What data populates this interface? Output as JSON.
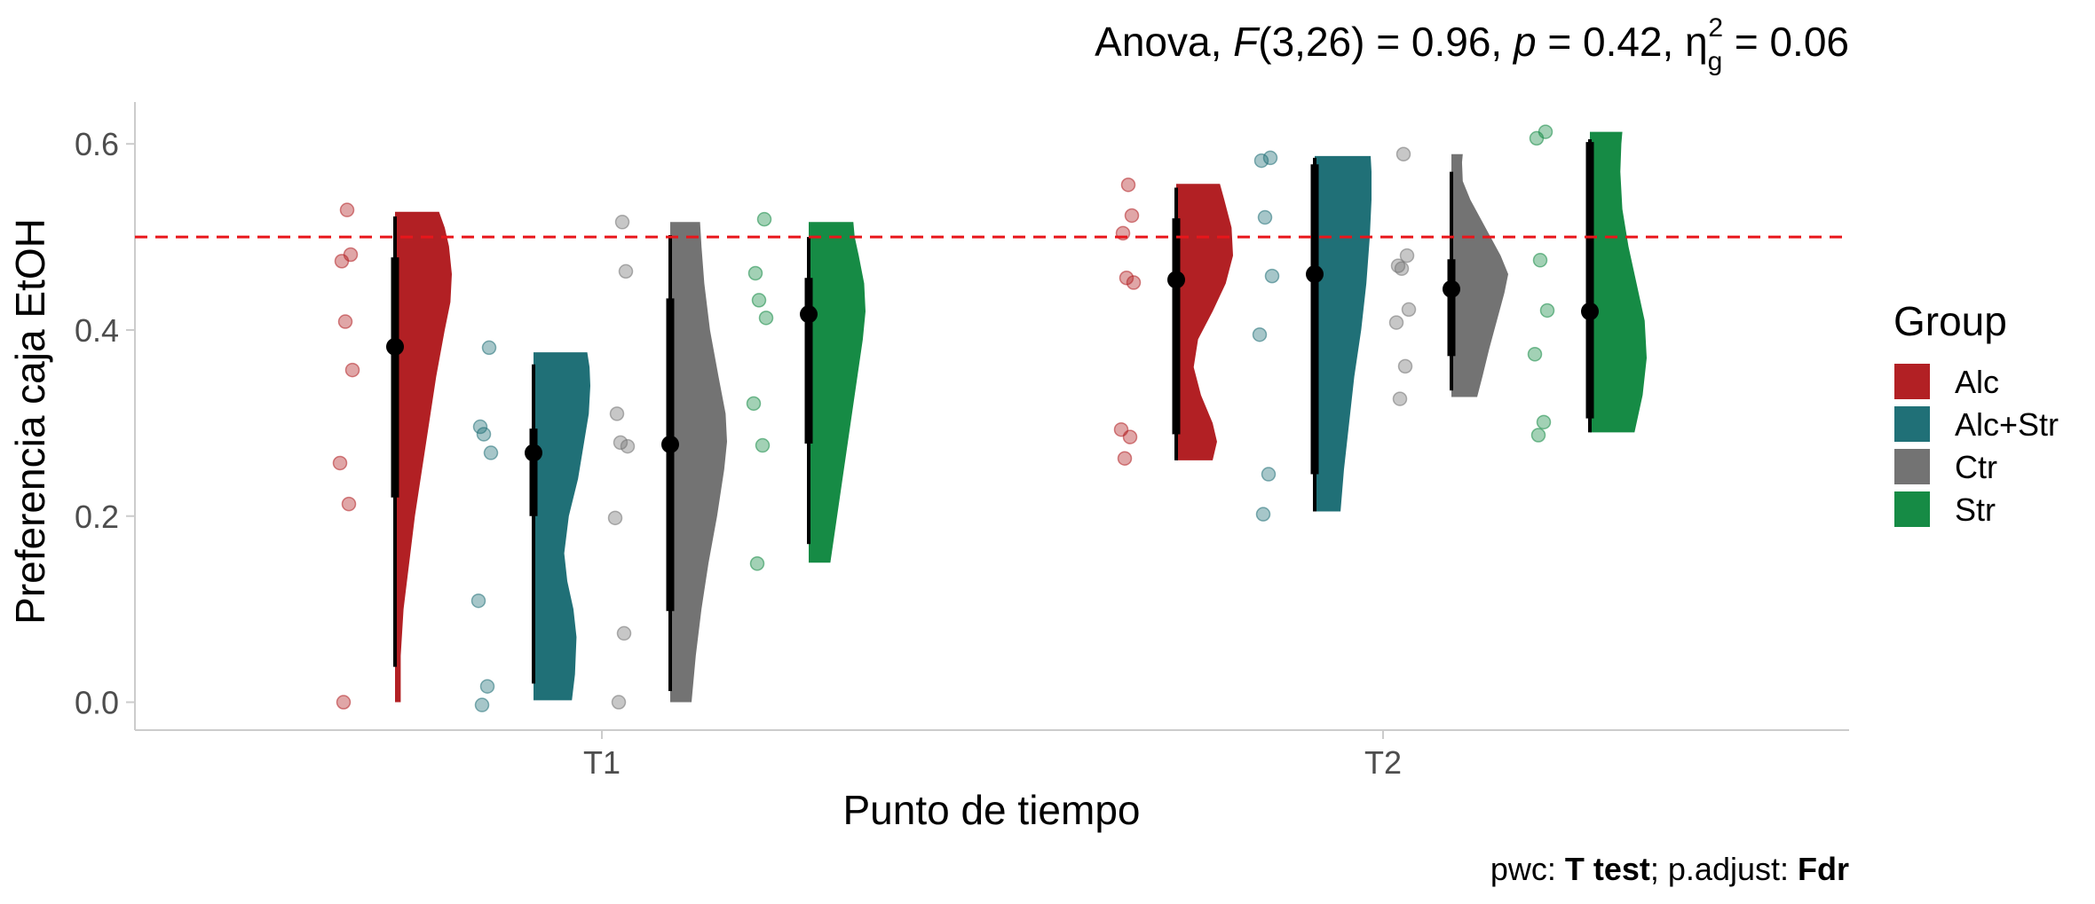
{
  "chart_data": {
    "type": "raincloud",
    "title_parts": {
      "prefix": "Anova, ",
      "stat_symbol": "F",
      "stat_args": "(3,26) = 0.96, ",
      "p_symbol": "p",
      "p_value": " = 0.42, ",
      "effect_symbol": "η",
      "effect_sub": "g",
      "effect_sup": "2",
      "effect_value": " = 0.06"
    },
    "caption_parts": {
      "pwc_label": "pwc: ",
      "pwc_value": "T test",
      "sep": "; p.adjust: ",
      "adjust_value": "Fdr"
    },
    "xlabel": "Punto de tiempo",
    "ylabel": "Preferencia caja EtOH",
    "categories": [
      "T1",
      "T2"
    ],
    "ylim": [
      -0.03,
      0.645
    ],
    "yticks": [
      0.0,
      0.2,
      0.4,
      0.6
    ],
    "ytick_labels": [
      "0.0",
      "0.2",
      "0.4",
      "0.6"
    ],
    "reference_line": {
      "y": 0.5,
      "color": "#e8161b",
      "style": "dashed"
    },
    "legend": {
      "title": "Group",
      "position": "right"
    },
    "groups": [
      {
        "name": "Alc",
        "color": "#b22024"
      },
      {
        "name": "Alc+Str",
        "color": "#207077"
      },
      {
        "name": "Ctr",
        "color": "#737373"
      },
      {
        "name": "Str",
        "color": "#168b45"
      }
    ],
    "series": [
      {
        "time": "T1",
        "group": "Alc",
        "color": "#b22024",
        "points": [
          0.0,
          0.213,
          0.257,
          0.357,
          0.409,
          0.474,
          0.481,
          0.529
        ],
        "mean": 0.382,
        "sd_range": [
          0.22,
          0.478
        ],
        "whisker": [
          0.038,
          0.522
        ],
        "density_range": [
          0.0,
          0.527
        ],
        "density": [
          [
            0.0,
            0.08
          ],
          [
            0.05,
            0.08
          ],
          [
            0.1,
            0.12
          ],
          [
            0.15,
            0.2
          ],
          [
            0.2,
            0.28
          ],
          [
            0.25,
            0.38
          ],
          [
            0.3,
            0.48
          ],
          [
            0.35,
            0.58
          ],
          [
            0.4,
            0.7
          ],
          [
            0.43,
            0.78
          ],
          [
            0.46,
            0.8
          ],
          [
            0.49,
            0.76
          ],
          [
            0.51,
            0.7
          ],
          [
            0.527,
            0.62
          ]
        ]
      },
      {
        "time": "T1",
        "group": "Alc+Str",
        "color": "#207077",
        "points": [
          -0.003,
          0.017,
          0.109,
          0.268,
          0.288,
          0.296,
          0.381
        ],
        "mean": 0.268,
        "sd_range": [
          0.2,
          0.294
        ],
        "whisker": [
          0.02,
          0.363
        ],
        "density_range": [
          0.002,
          0.376
        ],
        "density": [
          [
            0.002,
            0.5
          ],
          [
            0.03,
            0.54
          ],
          [
            0.07,
            0.56
          ],
          [
            0.1,
            0.52
          ],
          [
            0.13,
            0.44
          ],
          [
            0.16,
            0.4
          ],
          [
            0.2,
            0.46
          ],
          [
            0.24,
            0.58
          ],
          [
            0.28,
            0.66
          ],
          [
            0.31,
            0.72
          ],
          [
            0.34,
            0.74
          ],
          [
            0.36,
            0.73
          ],
          [
            0.376,
            0.7
          ]
        ]
      },
      {
        "time": "T1",
        "group": "Ctr",
        "color": "#737373",
        "points": [
          0.0,
          0.074,
          0.198,
          0.275,
          0.279,
          0.31,
          0.463,
          0.516
        ],
        "mean": 0.277,
        "sd_range": [
          0.098,
          0.434
        ],
        "whisker": [
          0.012,
          0.502
        ],
        "density_range": [
          0.0,
          0.516
        ],
        "density": [
          [
            0.0,
            0.3
          ],
          [
            0.05,
            0.36
          ],
          [
            0.1,
            0.44
          ],
          [
            0.15,
            0.54
          ],
          [
            0.2,
            0.66
          ],
          [
            0.25,
            0.76
          ],
          [
            0.28,
            0.8
          ],
          [
            0.31,
            0.78
          ],
          [
            0.35,
            0.68
          ],
          [
            0.4,
            0.56
          ],
          [
            0.45,
            0.48
          ],
          [
            0.49,
            0.44
          ],
          [
            0.516,
            0.42
          ]
        ]
      },
      {
        "time": "T1",
        "group": "Str",
        "color": "#168b45",
        "points": [
          0.149,
          0.276,
          0.321,
          0.413,
          0.432,
          0.461,
          0.519
        ],
        "mean": 0.417,
        "sd_range": [
          0.278,
          0.456
        ],
        "whisker": [
          0.17,
          0.5
        ],
        "density_range": [
          0.15,
          0.516
        ],
        "density": [
          [
            0.15,
            0.32
          ],
          [
            0.2,
            0.42
          ],
          [
            0.25,
            0.52
          ],
          [
            0.3,
            0.62
          ],
          [
            0.35,
            0.72
          ],
          [
            0.39,
            0.8
          ],
          [
            0.42,
            0.84
          ],
          [
            0.45,
            0.82
          ],
          [
            0.48,
            0.74
          ],
          [
            0.5,
            0.68
          ],
          [
            0.516,
            0.66
          ]
        ]
      },
      {
        "time": "T2",
        "group": "Alc",
        "color": "#b22024",
        "points": [
          0.262,
          0.285,
          0.293,
          0.451,
          0.456,
          0.504,
          0.523,
          0.556
        ],
        "mean": 0.454,
        "sd_range": [
          0.288,
          0.52
        ],
        "whisker": [
          0.26,
          0.553
        ],
        "density_range": [
          0.26,
          0.557
        ],
        "density": [
          [
            0.26,
            0.5
          ],
          [
            0.28,
            0.56
          ],
          [
            0.3,
            0.5
          ],
          [
            0.33,
            0.34
          ],
          [
            0.36,
            0.24
          ],
          [
            0.39,
            0.3
          ],
          [
            0.42,
            0.5
          ],
          [
            0.45,
            0.68
          ],
          [
            0.48,
            0.78
          ],
          [
            0.51,
            0.76
          ],
          [
            0.54,
            0.66
          ],
          [
            0.557,
            0.6
          ]
        ]
      },
      {
        "time": "T2",
        "group": "Alc+Str",
        "color": "#207077",
        "points": [
          0.202,
          0.245,
          0.395,
          0.458,
          0.521,
          0.582,
          0.585
        ],
        "mean": 0.46,
        "sd_range": [
          0.245,
          0.578
        ],
        "whisker": [
          0.205,
          0.585
        ],
        "density_range": [
          0.205,
          0.587
        ],
        "density": [
          [
            0.205,
            0.3
          ],
          [
            0.25,
            0.34
          ],
          [
            0.3,
            0.4
          ],
          [
            0.35,
            0.46
          ],
          [
            0.4,
            0.54
          ],
          [
            0.45,
            0.6
          ],
          [
            0.5,
            0.64
          ],
          [
            0.54,
            0.66
          ],
          [
            0.57,
            0.66
          ],
          [
            0.587,
            0.65
          ]
        ]
      },
      {
        "time": "T2",
        "group": "Ctr",
        "color": "#737373",
        "points": [
          0.326,
          0.361,
          0.408,
          0.422,
          0.466,
          0.469,
          0.48,
          0.589
        ],
        "mean": 0.444,
        "sd_range": [
          0.372,
          0.476
        ],
        "whisker": [
          0.335,
          0.57
        ],
        "density_range": [
          0.328,
          0.589
        ],
        "density": [
          [
            0.328,
            0.68
          ],
          [
            0.35,
            0.82
          ],
          [
            0.38,
            1.0
          ],
          [
            0.41,
            1.2
          ],
          [
            0.44,
            1.4
          ],
          [
            0.46,
            1.5
          ],
          [
            0.48,
            1.3
          ],
          [
            0.51,
            0.9
          ],
          [
            0.54,
            0.5
          ],
          [
            0.56,
            0.3
          ],
          [
            0.58,
            0.28
          ],
          [
            0.589,
            0.3
          ]
        ]
      },
      {
        "time": "T2",
        "group": "Str",
        "color": "#168b45",
        "points": [
          0.287,
          0.301,
          0.374,
          0.421,
          0.475,
          0.606,
          0.613
        ],
        "mean": 0.42,
        "sd_range": [
          0.305,
          0.602
        ],
        "whisker": [
          0.29,
          0.605
        ],
        "density_range": [
          0.29,
          0.613
        ],
        "density": [
          [
            0.29,
            0.44
          ],
          [
            0.33,
            0.52
          ],
          [
            0.37,
            0.56
          ],
          [
            0.41,
            0.54
          ],
          [
            0.45,
            0.46
          ],
          [
            0.49,
            0.38
          ],
          [
            0.53,
            0.32
          ],
          [
            0.57,
            0.3
          ],
          [
            0.6,
            0.31
          ],
          [
            0.613,
            0.32
          ]
        ]
      }
    ]
  }
}
